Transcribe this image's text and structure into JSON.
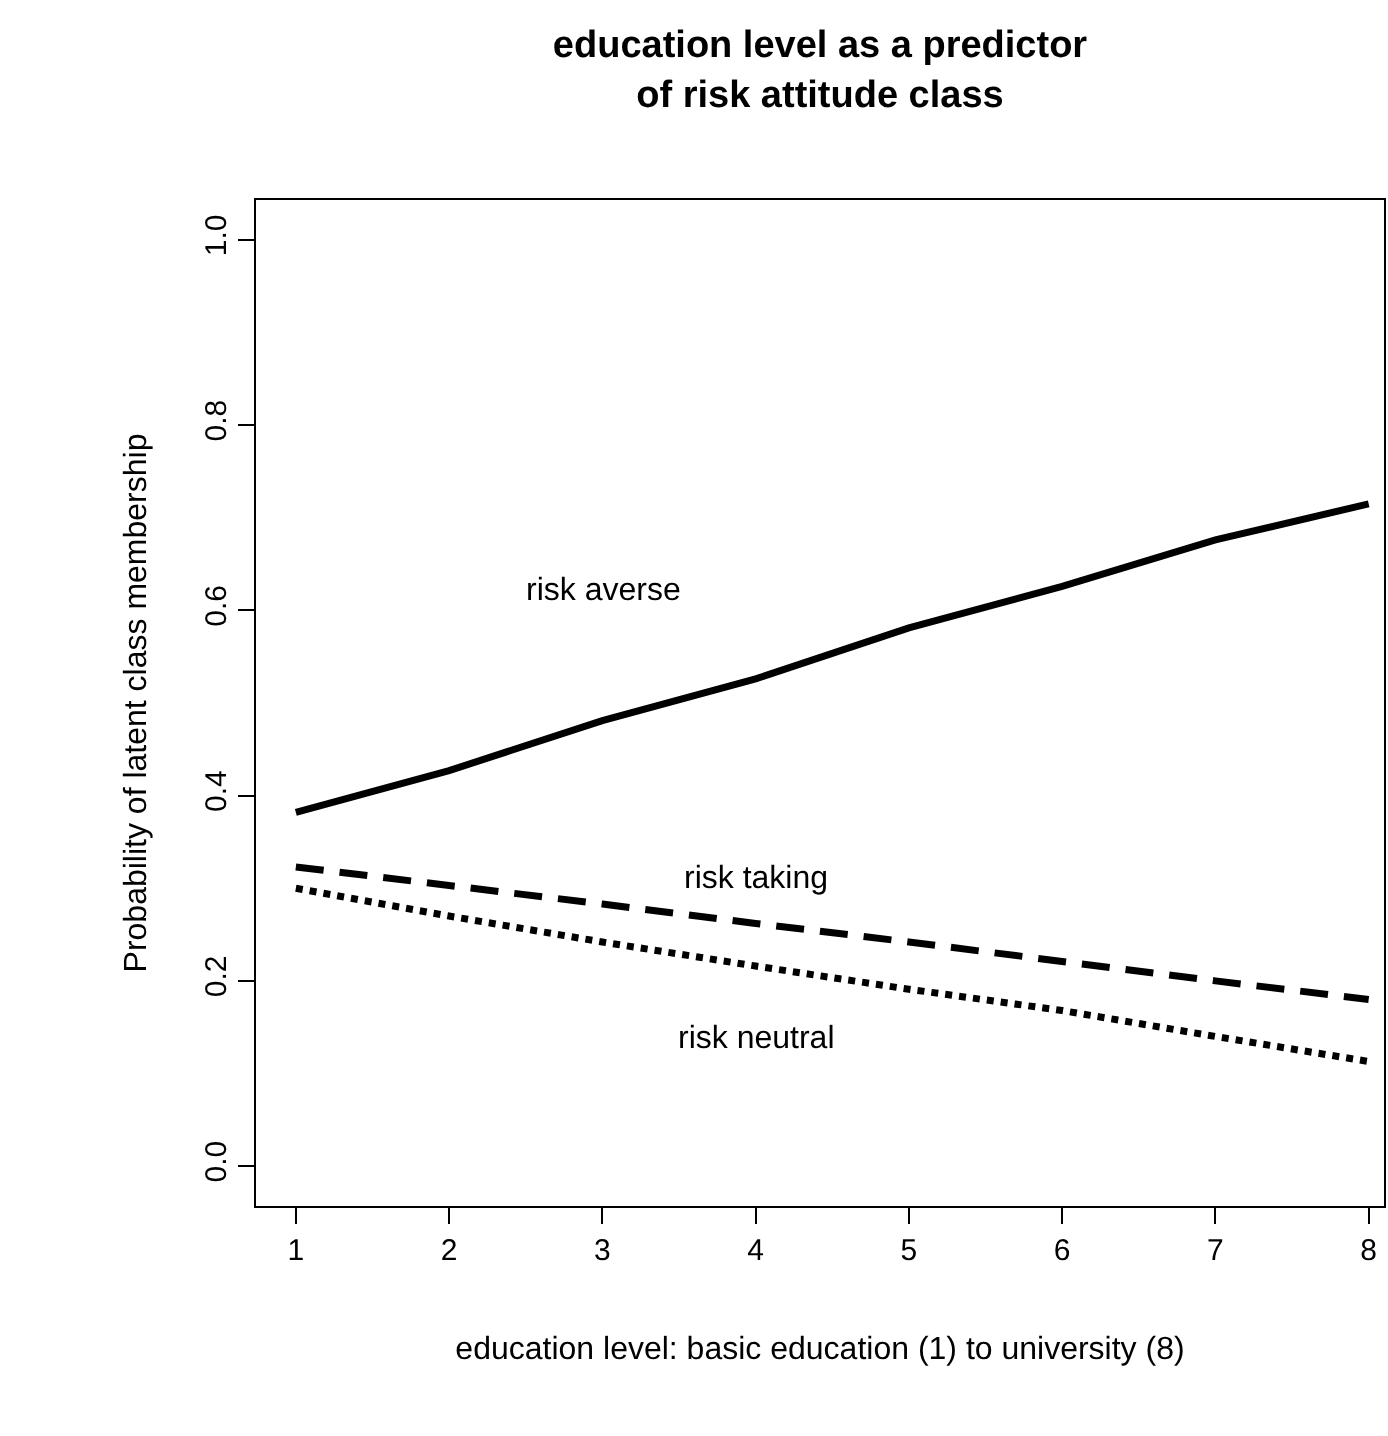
{
  "chart_data": {
    "type": "line",
    "title": "education level as a predictor\nof risk attitude class",
    "xlabel": "education level: basic education (1) to university (8)",
    "ylabel": "Probability of latent class membership",
    "x": [
      1,
      2,
      3,
      4,
      5,
      6,
      7,
      8
    ],
    "series": [
      {
        "name": "risk averse",
        "color": "#000000",
        "line_style": "solid",
        "values": [
          0.382,
          0.427,
          0.481,
          0.526,
          0.581,
          0.626,
          0.676,
          0.715
        ]
      },
      {
        "name": "risk taking",
        "color": "#000000",
        "line_style": "dashed",
        "values": [
          0.323,
          0.303,
          0.283,
          0.262,
          0.242,
          0.221,
          0.2,
          0.18
        ]
      },
      {
        "name": "risk neutral",
        "color": "#000000",
        "line_style": "dotted",
        "values": [
          0.3,
          0.27,
          0.242,
          0.216,
          0.191,
          0.168,
          0.14,
          0.113
        ]
      }
    ],
    "xlim": [
      0.74,
      8.1
    ],
    "ylim": [
      -0.043,
      1.043
    ],
    "xticks": [
      1,
      2,
      3,
      4,
      5,
      6,
      7,
      8
    ],
    "yticks": [
      {
        "value": 0,
        "label": "0.0"
      },
      {
        "value": 0.2,
        "label": "0.2"
      },
      {
        "value": 0.4,
        "label": "0.4"
      },
      {
        "value": 0.6,
        "label": "0.6"
      },
      {
        "value": 0.8,
        "label": "0.8"
      },
      {
        "value": 1,
        "label": "1.0"
      }
    ],
    "legend": false,
    "marker": "none"
  }
}
